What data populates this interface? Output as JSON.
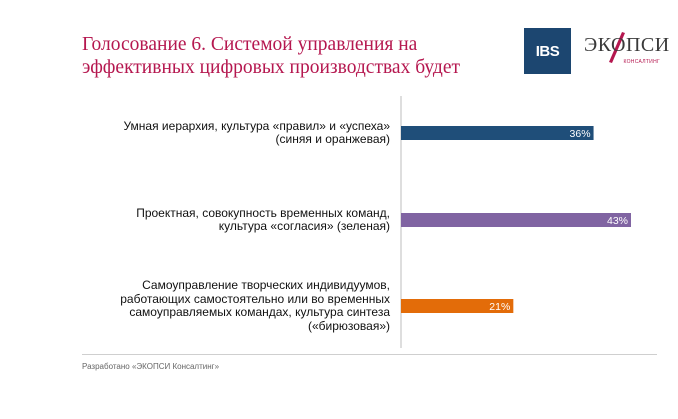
{
  "title": "Голосование 6. Системой управления на эффективных цифровых производствах будет",
  "logos": {
    "ibs": "IBS",
    "ecopsy_word": "ЭКОПСИ",
    "ecopsy_sub": "КОНСАЛТИНГ"
  },
  "footer": "Разработано «ЭКОПСИ Консалтинг»",
  "colors": {
    "title": "#b5174f",
    "blue": "#1f4e79",
    "purple": "#8064a2",
    "orange": "#e36c09"
  },
  "chart_data": {
    "type": "bar",
    "orientation": "horizontal",
    "categories": [
      "Умная иерархия, культура «правил» и «успеха» (синяя и оранжевая)",
      "Проектная, совокупность временных команд, культура «согласия» (зеленая)",
      "Самоуправление творческих индивидуумов, работающих самостоятельно или во временных самоуправляемых командах, культура синтеза («бирюзовая»)"
    ],
    "category_lines": [
      [
        "Умная иерархия, культура «правил» и «успеха»",
        "(синяя и оранжевая)"
      ],
      [
        "Проектная, совокупность временных команд,",
        "культура «согласия» (зеленая)"
      ],
      [
        "Самоуправление творческих индивидуумов,",
        "работающих самостоятельно или во временных",
        "самоуправляемых командах, культура синтеза",
        "(«бирюзовая»)"
      ]
    ],
    "values": [
      36,
      43,
      21
    ],
    "data_labels": [
      "36%",
      "43%",
      "21%"
    ],
    "bar_colors": [
      "#1f4e79",
      "#8064a2",
      "#e36c09"
    ],
    "xlim": [
      0,
      48
    ]
  }
}
